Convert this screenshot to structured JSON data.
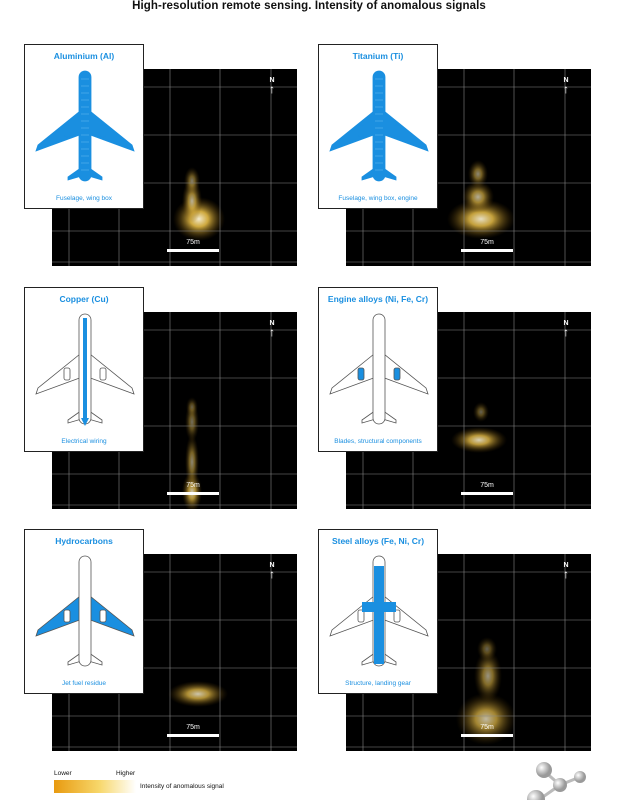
{
  "title": "High-resolution remote sensing. Intensity of anomalous signals",
  "panels": [
    {
      "name": "Aluminium (Al)",
      "subtitle": "Fuselage, wing box",
      "highlight": "all"
    },
    {
      "name": "Titanium (Ti)",
      "subtitle": "Fuselage, wing box, engine",
      "highlight": "all"
    },
    {
      "name": "Copper (Cu)",
      "subtitle": "Electrical wiring",
      "highlight": "spine"
    },
    {
      "name": "Engine alloys (Ni, Fe, Cr)",
      "subtitle": "Blades, structural components",
      "highlight": "engines"
    },
    {
      "name": "Hydrocarbons",
      "subtitle": "Jet fuel residue",
      "highlight": "wings"
    },
    {
      "name": "Steel alloys (Fe, Ni, Cr)",
      "subtitle": "Structure, landing gear",
      "highlight": "cross"
    }
  ],
  "map": {
    "north_label": "N",
    "scale_label": "75m"
  },
  "legend": {
    "lower": "Lower",
    "higher": "Higher",
    "label": "Intensity of anomalous signal"
  },
  "colors": {
    "accent": "#1a8fe0",
    "glow": "#f2c64a",
    "background": "#000000"
  }
}
